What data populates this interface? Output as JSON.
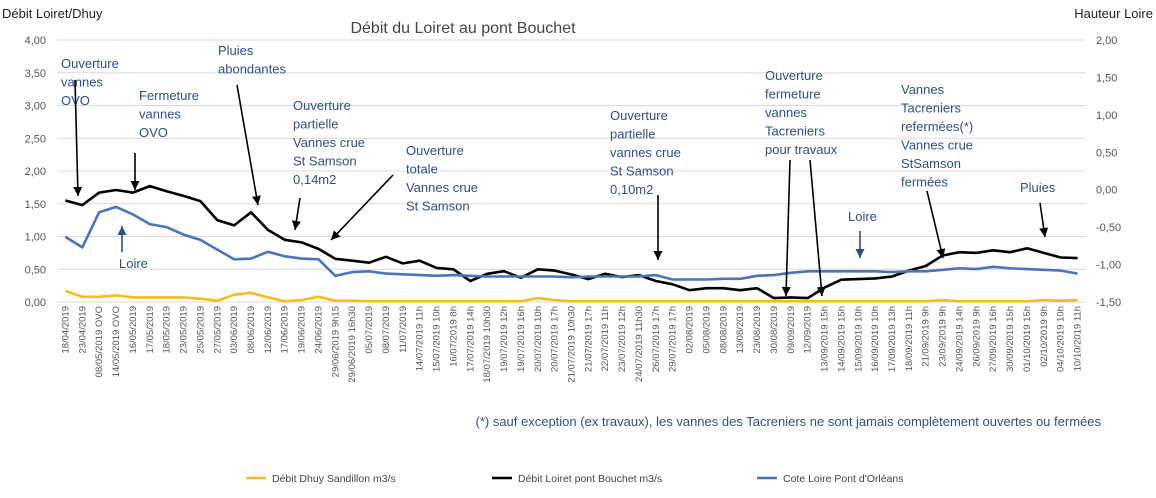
{
  "chart_data": {
    "type": "line",
    "title": "Débit du Loiret au pont Bouchet",
    "y_left_label": "Débit Loiret/Dhuy",
    "y_right_label": "Hauteur Loire",
    "y_left_range": [
      0,
      4
    ],
    "y_right_range": [
      -1.5,
      2
    ],
    "y_left_ticks": [
      "0,00",
      "0,50",
      "1,00",
      "1,50",
      "2,00",
      "2,50",
      "3,00",
      "3,50",
      "4,00"
    ],
    "y_right_ticks": [
      "-1,50",
      "-1,00",
      "-0,50",
      "0,00",
      "0,50",
      "1,00",
      "1,50",
      "2,00"
    ],
    "grid": true,
    "legend_position": "bottom",
    "categories": [
      "18/04/2019",
      "23/04/2019",
      "08/05/2019 OVO",
      "14/05/2019 OVO",
      "16/05/2019",
      "17/05/2019",
      "18/05/2019",
      "23/05/2019",
      "25/05/2019",
      "27/05/2019",
      "03/06/2019",
      "08/06/2019",
      "12/06/2019",
      "17/06/2019",
      "19/06/2019",
      "24/06/2019",
      "29/06/2019 9h15",
      "29/06/2019 16h30",
      "05/07/2019",
      "08/07/2019",
      "11/07/2019",
      "14/07/2019 11h",
      "15/07/2019 10h",
      "16/07/2019 8h",
      "17/07/2019 14h",
      "18/07/2019 10h30",
      "19/07/2019 12h",
      "19/07/2019 16h",
      "20/07/2019 10h",
      "20/07/2019 17h",
      "21/07/2019 10h30",
      "21/07/2019 17h",
      "22/07/2019 11h",
      "23/07/2019 12h",
      "24/07/2019 11h30",
      "26/07/2019 17h",
      "29/07/2019 17h",
      "02/08/2019",
      "05/08/2019",
      "08/08/2019",
      "13/08/2019",
      "23/08/2019",
      "30/08/2019",
      "09/09/2019",
      "12/09/2019",
      "13/09/2019 15h",
      "14/09/2019 15h",
      "15/09/2019 10h",
      "16/09/2019 10h",
      "17/09/2019 13h",
      "18/09/2019 11h",
      "21/09/2019 9h",
      "23/09/2019 9h",
      "24/09/2019 14h",
      "26/09/2019 9h",
      "27/09/2019 16h",
      "30/09/2019 15h",
      "01/10/2019 15h",
      "02/10/2019 9h",
      "04/10/2019 10h",
      "10/10/2019 11h"
    ],
    "series": [
      {
        "name": "Débit Dhuy  Sandillon m3/s",
        "axis": "left",
        "color": "#f2bf1a",
        "values": [
          0.17,
          0.08,
          0.08,
          0.1,
          0.07,
          0.07,
          0.07,
          0.07,
          0.05,
          0.02,
          0.11,
          0.14,
          0.07,
          0.01,
          0.03,
          0.08,
          0.02,
          0.02,
          0.01,
          0.01,
          0.01,
          0.01,
          0.01,
          0.01,
          0.01,
          0.01,
          0.01,
          0.01,
          0.06,
          0.03,
          0.01,
          0.01,
          0.01,
          0.01,
          0.01,
          0.01,
          0.01,
          0.01,
          0.01,
          0.01,
          0.01,
          0.01,
          0.01,
          0.01,
          0.01,
          0.01,
          0.01,
          0.01,
          0.01,
          0.01,
          0.01,
          0.01,
          0.03,
          0.01,
          0.01,
          0.01,
          0.01,
          0.01,
          0.03,
          0.02,
          0.03
        ]
      },
      {
        "name": "Débit Loiret pont Bouchet m3/s",
        "axis": "left",
        "color": "#000000",
        "values": [
          1.55,
          1.48,
          1.67,
          1.71,
          1.67,
          1.77,
          1.69,
          1.62,
          1.54,
          1.25,
          1.17,
          1.37,
          1.1,
          0.95,
          0.91,
          0.81,
          0.66,
          0.63,
          0.6,
          0.69,
          0.59,
          0.63,
          0.52,
          0.5,
          0.32,
          0.43,
          0.47,
          0.37,
          0.5,
          0.48,
          0.42,
          0.35,
          0.43,
          0.38,
          0.41,
          0.32,
          0.27,
          0.18,
          0.21,
          0.21,
          0.18,
          0.21,
          0.06,
          0.07,
          0.06,
          0.22,
          0.34,
          0.35,
          0.36,
          0.39,
          0.48,
          0.55,
          0.71,
          0.76,
          0.75,
          0.79,
          0.76,
          0.82,
          0.75,
          0.68,
          0.67
        ]
      },
      {
        "name": "Cote Loire Pont d'Orléans",
        "axis": "right",
        "color": "#4a74b8",
        "values": [
          -0.63,
          -0.77,
          -0.3,
          -0.23,
          -0.33,
          -0.46,
          -0.5,
          -0.6,
          -0.67,
          -0.8,
          -0.93,
          -0.92,
          -0.83,
          -0.89,
          -0.92,
          -0.93,
          -1.15,
          -1.1,
          -1.09,
          -1.12,
          -1.13,
          -1.14,
          -1.15,
          -1.14,
          -1.15,
          -1.16,
          -1.16,
          -1.16,
          -1.16,
          -1.16,
          -1.17,
          -1.16,
          -1.16,
          -1.16,
          -1.16,
          -1.14,
          -1.2,
          -1.2,
          -1.2,
          -1.19,
          -1.19,
          -1.15,
          -1.14,
          -1.11,
          -1.09,
          -1.09,
          -1.09,
          -1.09,
          -1.09,
          -1.1,
          -1.09,
          -1.09,
          -1.07,
          -1.05,
          -1.06,
          -1.03,
          -1.05,
          -1.06,
          -1.07,
          -1.08,
          -1.12
        ]
      }
    ],
    "annotations": [
      {
        "text": [
          "Ouverture",
          "vannes",
          "OVO"
        ],
        "color": "#2e4f86"
      },
      {
        "text": [
          "Fermeture",
          "vannes",
          "OVO"
        ],
        "color": "#2e4f86"
      },
      {
        "text": [
          "Pluies",
          "abondantes"
        ],
        "color": "#2e4f86"
      },
      {
        "text": [
          "Ouverture",
          "partielle",
          "Vannes crue",
          "St Samson",
          "0,14m2"
        ],
        "color": "#2e4f86"
      },
      {
        "text": [
          "Ouverture",
          "totale",
          "Vannes crue",
          "St Samson"
        ],
        "color": "#2e4f86"
      },
      {
        "text": [
          "Loire"
        ],
        "color": "#2e4f86"
      },
      {
        "text": [
          "Ouverture",
          "partielle",
          "vannes crue",
          "St Samson",
          "0,10m2"
        ],
        "color": "#2e4f86"
      },
      {
        "text": [
          "Ouverture",
          "fermeture",
          "vannes",
          "Tacreniers",
          "pour travaux"
        ],
        "color": "#2e4f86"
      },
      {
        "text": [
          "Loire"
        ],
        "color": "#2e4f86"
      },
      {
        "text": [
          "Vannes",
          "Tacreniers",
          "refermées(*)",
          "Vannes crue",
          "StSamson",
          "fermées"
        ],
        "color": "#2e4f86"
      },
      {
        "text": [
          "Pluies"
        ],
        "color": "#2e4f86"
      }
    ],
    "footnote": "(*) sauf exception (ex travaux), les vannes des Tacreniers ne sont jamais complètement ouvertes ou fermées"
  }
}
